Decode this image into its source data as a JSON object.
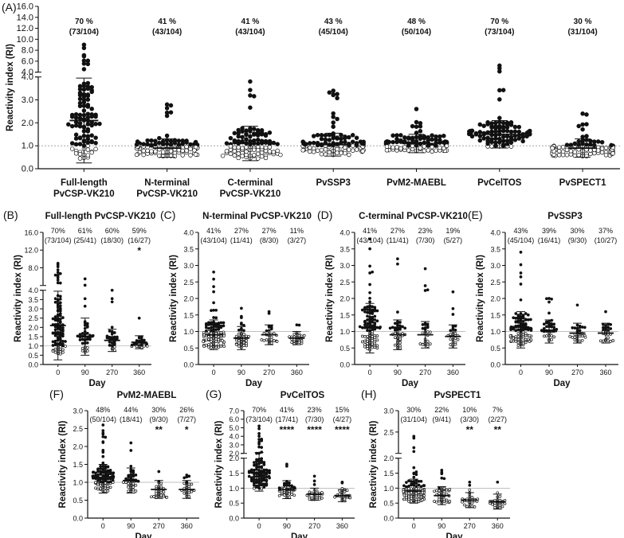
{
  "chart_data": [
    {
      "id": "A",
      "panel_label": "(A)",
      "type": "scatter",
      "ylabel": "Reactivity index (RI)",
      "y_axis_break": {
        "lower": [
          0,
          4
        ],
        "upper": [
          4,
          16
        ]
      },
      "yticks_lower": [
        "0.0",
        "1.0",
        "2.0",
        "3.0",
        "4.0"
      ],
      "yticks_upper": [
        "4.0",
        "6.0",
        "8.0",
        "10.0",
        "12.0",
        "14.0",
        "16.0"
      ],
      "cutoff_line": 1.0,
      "categories": [
        {
          "line1": "Full-length",
          "line2": "PvCSP-VK210",
          "percent": "70 %",
          "ratio": "(73/104)",
          "n": 104,
          "mean": 2.1,
          "sd": 1.85,
          "max": 9.0
        },
        {
          "line1": "N-terminal",
          "line2": "PvCSP-VK210",
          "percent": "41 %",
          "ratio": "(43/104)",
          "n": 104,
          "mean": 0.9,
          "sd": 0.4,
          "max": 2.8
        },
        {
          "line1": "C-terminal",
          "line2": "PvCSP-VK210",
          "percent": "41 %",
          "ratio": "(43/104)",
          "n": 104,
          "mean": 1.1,
          "sd": 0.75,
          "max": 3.8
        },
        {
          "line1": "PvSSP3",
          "line2": "",
          "percent": "43 %",
          "ratio": "(45/104)",
          "n": 104,
          "mean": 1.05,
          "sd": 0.5,
          "max": 3.4
        },
        {
          "line1": "PvM2-MAEBL",
          "line2": "",
          "percent": "48 %",
          "ratio": "(50/104)",
          "n": 104,
          "mean": 1.1,
          "sd": 0.4,
          "max": 2.6
        },
        {
          "line1": "PvCelTOS",
          "line2": "",
          "percent": "70 %",
          "ratio": "(73/104)",
          "n": 104,
          "mean": 1.5,
          "sd": 0.6,
          "max": 5.2
        },
        {
          "line1": "PvSPECT1",
          "line2": "",
          "percent": "30 %",
          "ratio": "(31/104)",
          "n": 104,
          "mean": 0.9,
          "sd": 0.4,
          "max": 2.4
        }
      ]
    },
    {
      "id": "B",
      "panel_label": "(B)",
      "title": "Full-length PvCSP-VK210",
      "type": "scatter",
      "xlabel": "Day",
      "ylabel": "Reactivity index (RI)",
      "y_axis_break": {
        "lower": [
          0,
          4
        ],
        "upper": [
          4,
          16
        ]
      },
      "yticks_lower": [
        "0.0",
        "0.5",
        "1.0",
        "1.5",
        "2.0",
        "2.5",
        "3.0",
        "3.5",
        "4.0"
      ],
      "yticks_upper": [
        "8.0",
        "12.0",
        "16.0"
      ],
      "cutoff_line": 1.0,
      "groups": [
        {
          "day": "0",
          "percent": "70%",
          "ratio": "(73/104)",
          "sig": "",
          "n": 104,
          "mean": 2.1,
          "sd": 1.85,
          "max": 9.0
        },
        {
          "day": "90",
          "percent": "61%",
          "ratio": "(25/41)",
          "sig": "",
          "n": 41,
          "mean": 1.5,
          "sd": 1.0,
          "max": 5.5
        },
        {
          "day": "270",
          "percent": "60%",
          "ratio": "(18/30)",
          "sig": "",
          "n": 30,
          "mean": 1.3,
          "sd": 0.6,
          "max": 4.0
        },
        {
          "day": "360",
          "percent": "59%",
          "ratio": "(16/27)",
          "sig": "*",
          "n": 27,
          "mean": 1.2,
          "sd": 0.35,
          "max": 2.5
        }
      ]
    },
    {
      "id": "C",
      "panel_label": "(C)",
      "title": "N-terminal PvCSP-VK210",
      "type": "scatter",
      "xlabel": "Day",
      "ylabel": "Reactivity index (RI)",
      "ylim": [
        0,
        4
      ],
      "yticks": [
        "0.0",
        "0.5",
        "1.0",
        "1.5",
        "2.0",
        "2.5",
        "3.0",
        "3.5",
        "4.0"
      ],
      "cutoff_line": 1.0,
      "groups": [
        {
          "day": "0",
          "percent": "41%",
          "ratio": "(43/104)",
          "sig": "",
          "n": 104,
          "mean": 0.9,
          "sd": 0.45,
          "max": 2.8
        },
        {
          "day": "90",
          "percent": "27%",
          "ratio": "(11/41)",
          "sig": "",
          "n": 41,
          "mean": 0.8,
          "sd": 0.35,
          "max": 1.7
        },
        {
          "day": "270",
          "percent": "27%",
          "ratio": "(8/30)",
          "sig": "",
          "n": 30,
          "mean": 0.9,
          "sd": 0.3,
          "max": 1.6
        },
        {
          "day": "360",
          "percent": "11%",
          "ratio": "(3/27)",
          "sig": "",
          "n": 27,
          "mean": 0.8,
          "sd": 0.2,
          "max": 1.2
        }
      ]
    },
    {
      "id": "D",
      "panel_label": "(D)",
      "title": "C-terminal PvCSP-VK210",
      "type": "scatter",
      "xlabel": "Day",
      "ylabel": "Reactivity index (RI)",
      "ylim": [
        0,
        4
      ],
      "yticks": [
        "0.0",
        "0.5",
        "1.0",
        "1.5",
        "2.0",
        "2.5",
        "3.0",
        "3.5",
        "4.0"
      ],
      "cutoff_line": 1.0,
      "groups": [
        {
          "day": "0",
          "percent": "41%",
          "ratio": "(43/104)",
          "sig": "",
          "n": 104,
          "mean": 1.1,
          "sd": 0.75,
          "max": 3.8
        },
        {
          "day": "90",
          "percent": "27%",
          "ratio": "(11/41)",
          "sig": "",
          "n": 41,
          "mean": 0.9,
          "sd": 0.45,
          "max": 3.2
        },
        {
          "day": "270",
          "percent": "23%",
          "ratio": "(7/30)",
          "sig": "",
          "n": 30,
          "mean": 0.9,
          "sd": 0.4,
          "max": 2.9
        },
        {
          "day": "360",
          "percent": "19%",
          "ratio": "(5/27)",
          "sig": "",
          "n": 27,
          "mean": 0.85,
          "sd": 0.35,
          "max": 2.2
        }
      ]
    },
    {
      "id": "E",
      "panel_label": "(E)",
      "title": "PvSSP3",
      "type": "scatter",
      "xlabel": "Day",
      "ylabel": "Reactivity index (RI)",
      "ylim": [
        0,
        4
      ],
      "yticks": [
        "0.0",
        "0.5",
        "1.0",
        "1.5",
        "2.0",
        "2.5",
        "3.0",
        "3.5",
        "4.0"
      ],
      "cutoff_line": 1.0,
      "groups": [
        {
          "day": "0",
          "percent": "43%",
          "ratio": "(45/104)",
          "sig": "",
          "n": 104,
          "mean": 1.05,
          "sd": 0.55,
          "max": 3.4
        },
        {
          "day": "90",
          "percent": "39%",
          "ratio": "(16/41)",
          "sig": "",
          "n": 41,
          "mean": 1.0,
          "sd": 0.35,
          "max": 2.0
        },
        {
          "day": "270",
          "percent": "30%",
          "ratio": "(9/30)",
          "sig": "",
          "n": 30,
          "mean": 0.95,
          "sd": 0.3,
          "max": 1.8
        },
        {
          "day": "360",
          "percent": "37%",
          "ratio": "(10/27)",
          "sig": "",
          "n": 27,
          "mean": 0.95,
          "sd": 0.3,
          "max": 1.6
        }
      ]
    },
    {
      "id": "F",
      "panel_label": "(F)",
      "title": "PvM2-MAEBL",
      "type": "scatter",
      "xlabel": "Day",
      "ylabel": "Reactivity index (RI)",
      "ylim": [
        0,
        3
      ],
      "yticks": [
        "0.0",
        "0.5",
        "1.0",
        "1.5",
        "2.0",
        "2.5",
        "3.0"
      ],
      "cutoff_line": 1.0,
      "groups": [
        {
          "day": "0",
          "percent": "48%",
          "ratio": "(50/104)",
          "sig": "",
          "n": 104,
          "mean": 1.1,
          "sd": 0.4,
          "max": 2.6
        },
        {
          "day": "90",
          "percent": "44%",
          "ratio": "(18/41)",
          "sig": "",
          "n": 41,
          "mean": 1.05,
          "sd": 0.35,
          "max": 2.1
        },
        {
          "day": "270",
          "percent": "30%",
          "ratio": "(9/30)",
          "sig": "**",
          "n": 30,
          "mean": 0.8,
          "sd": 0.25,
          "max": 1.3
        },
        {
          "day": "360",
          "percent": "26%",
          "ratio": "(7/27)",
          "sig": "*",
          "n": 27,
          "mean": 0.8,
          "sd": 0.25,
          "max": 1.2
        }
      ]
    },
    {
      "id": "G",
      "panel_label": "(G)",
      "title": "PvCelTOS",
      "type": "scatter",
      "xlabel": "Day",
      "ylabel": "Reactivity index (RI)",
      "y_axis_break": {
        "lower": [
          0,
          2
        ],
        "upper": [
          2,
          7
        ]
      },
      "yticks_lower": [
        "0.0",
        "0.5",
        "1.0",
        "1.5",
        "2.0"
      ],
      "yticks_upper": [
        "2.0",
        "3.0",
        "4.0",
        "5.0",
        "6.0",
        "7.0"
      ],
      "cutoff_line": 1.0,
      "groups": [
        {
          "day": "0",
          "percent": "70%",
          "ratio": "(73/104)",
          "sig": "",
          "n": 104,
          "mean": 1.5,
          "sd": 0.6,
          "max": 5.2
        },
        {
          "day": "90",
          "percent": "41%",
          "ratio": "(17/41)",
          "sig": "****",
          "n": 41,
          "mean": 0.95,
          "sd": 0.3,
          "max": 1.8
        },
        {
          "day": "270",
          "percent": "23%",
          "ratio": "(7/30)",
          "sig": "****",
          "n": 30,
          "mean": 0.8,
          "sd": 0.2,
          "max": 1.4
        },
        {
          "day": "360",
          "percent": "15%",
          "ratio": "(4/27)",
          "sig": "****",
          "n": 27,
          "mean": 0.75,
          "sd": 0.2,
          "max": 1.2
        }
      ]
    },
    {
      "id": "H",
      "panel_label": "(H)",
      "title": "PvSPECT1",
      "type": "scatter",
      "xlabel": "Day",
      "ylabel": "Reactivity index (RI)",
      "y_axis_break": {
        "lower": [
          0,
          2
        ],
        "upper": [
          2,
          3
        ]
      },
      "yticks_lower": [
        "0.0",
        "0.5",
        "1.0",
        "1.5",
        "2.0"
      ],
      "yticks_upper": [
        "2.5",
        "3.0"
      ],
      "cutoff_line": 1.0,
      "groups": [
        {
          "day": "0",
          "percent": "30%",
          "ratio": "(31/104)",
          "sig": "",
          "n": 104,
          "mean": 0.9,
          "sd": 0.4,
          "max": 2.4
        },
        {
          "day": "90",
          "percent": "22%",
          "ratio": "(9/41)",
          "sig": "",
          "n": 41,
          "mean": 0.75,
          "sd": 0.3,
          "max": 1.6
        },
        {
          "day": "270",
          "percent": "10%",
          "ratio": "(3/30)",
          "sig": "**",
          "n": 30,
          "mean": 0.6,
          "sd": 0.25,
          "max": 1.2
        },
        {
          "day": "360",
          "percent": "7%",
          "ratio": "(2/27)",
          "sig": "**",
          "n": 27,
          "mean": 0.55,
          "sd": 0.25,
          "max": 1.2
        }
      ]
    }
  ]
}
